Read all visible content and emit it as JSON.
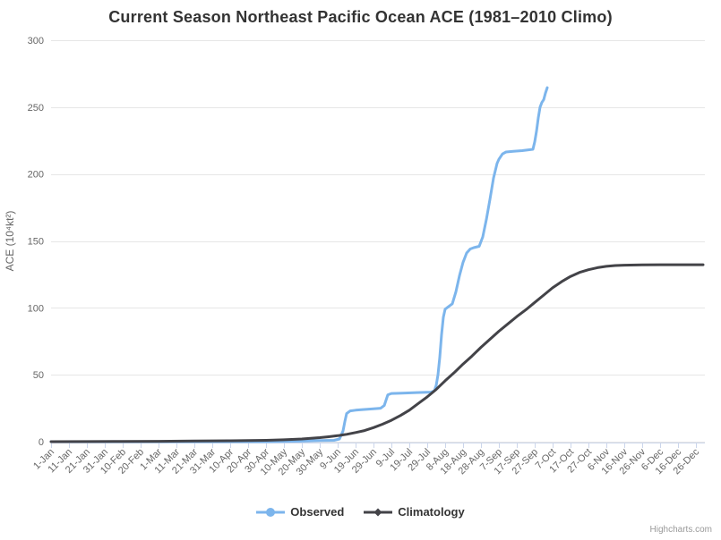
{
  "chart": {
    "credit": "Highcharts.com",
    "colors": {
      "background": "#ffffff",
      "observed": "#7cb5ec",
      "climatology": "#434348",
      "grid": "#e6e6e6",
      "axis_line": "#ccd6eb",
      "tick_label": "#666666",
      "title_text": "#333333",
      "legend_text": "#333333",
      "credit_text": "#999999"
    }
  },
  "chart_data": {
    "type": "line",
    "title": "Current Season Northeast Pacific Ocean ACE (1981–2010 Climo)",
    "xlabel": "",
    "ylabel": "ACE (10⁴kt²)",
    "ylim": [
      0,
      300
    ],
    "y_ticks": [
      0,
      50,
      100,
      150,
      200,
      250,
      300
    ],
    "grid": "horizontal",
    "legend_position": "bottom",
    "x_range_days": [
      0,
      364
    ],
    "x_tick_days": [
      0,
      10,
      20,
      30,
      40,
      50,
      60,
      70,
      80,
      90,
      100,
      110,
      120,
      130,
      140,
      150,
      160,
      170,
      180,
      190,
      200,
      210,
      220,
      230,
      240,
      250,
      260,
      270,
      280,
      290,
      300,
      310,
      320,
      330,
      340,
      350,
      360
    ],
    "x_tick_labels": [
      "1-Jan",
      "11-Jan",
      "21-Jan",
      "31-Jan",
      "10-Feb",
      "20-Feb",
      "1-Mar",
      "11-Mar",
      "21-Mar",
      "31-Mar",
      "10-Apr",
      "20-Apr",
      "30-Apr",
      "10-May",
      "20-May",
      "30-May",
      "9-Jun",
      "19-Jun",
      "29-Jun",
      "9-Jul",
      "19-Jul",
      "29-Jul",
      "8-Aug",
      "18-Aug",
      "28-Aug",
      "7-Sep",
      "17-Sep",
      "27-Sep",
      "7-Oct",
      "17-Oct",
      "27-Oct",
      "6-Nov",
      "16-Nov",
      "26-Nov",
      "6-Dec",
      "16-Dec",
      "26-Dec"
    ],
    "series": [
      {
        "name": "Observed",
        "color": "#7cb5ec",
        "marker": "circle",
        "points": [
          [
            0,
            0
          ],
          [
            20,
            0
          ],
          [
            40,
            0
          ],
          [
            60,
            0
          ],
          [
            80,
            0
          ],
          [
            100,
            0
          ],
          [
            120,
            0
          ],
          [
            140,
            0.4
          ],
          [
            150,
            0.8
          ],
          [
            158,
            1
          ],
          [
            161,
            2
          ],
          [
            163,
            8
          ],
          [
            164,
            15
          ],
          [
            165,
            21
          ],
          [
            167,
            23
          ],
          [
            170,
            23.5
          ],
          [
            174,
            24
          ],
          [
            180,
            24.5
          ],
          [
            184,
            25
          ],
          [
            186,
            27
          ],
          [
            187,
            31
          ],
          [
            188,
            35
          ],
          [
            190,
            36
          ],
          [
            196,
            36.3
          ],
          [
            204,
            36.7
          ],
          [
            212,
            37
          ],
          [
            214,
            38
          ],
          [
            215,
            42
          ],
          [
            216,
            50
          ],
          [
            217,
            63
          ],
          [
            218,
            80
          ],
          [
            219,
            93
          ],
          [
            220,
            99
          ],
          [
            222,
            101
          ],
          [
            224,
            103
          ],
          [
            226,
            112
          ],
          [
            228,
            124
          ],
          [
            230,
            134
          ],
          [
            232,
            141
          ],
          [
            234,
            144
          ],
          [
            236,
            145
          ],
          [
            239,
            146
          ],
          [
            241,
            153
          ],
          [
            243,
            166
          ],
          [
            245,
            181
          ],
          [
            247,
            197
          ],
          [
            249,
            208
          ],
          [
            250,
            211
          ],
          [
            252,
            215
          ],
          [
            254,
            216.5
          ],
          [
            258,
            217
          ],
          [
            263,
            217.5
          ],
          [
            269,
            218.5
          ],
          [
            270,
            224
          ],
          [
            271,
            232
          ],
          [
            272,
            242
          ],
          [
            273,
            250
          ],
          [
            274,
            253.5
          ],
          [
            275,
            255.5
          ],
          [
            276,
            260.5
          ],
          [
            277,
            264.5
          ]
        ]
      },
      {
        "name": "Climatology",
        "color": "#434348",
        "marker": "diamond",
        "points": [
          [
            0,
            0
          ],
          [
            20,
            0.1
          ],
          [
            40,
            0.2
          ],
          [
            60,
            0.3
          ],
          [
            80,
            0.5
          ],
          [
            100,
            0.7
          ],
          [
            120,
            1
          ],
          [
            130,
            1.4
          ],
          [
            140,
            2
          ],
          [
            150,
            3
          ],
          [
            155,
            3.7
          ],
          [
            160,
            4.5
          ],
          [
            165,
            5.5
          ],
          [
            170,
            6.8
          ],
          [
            175,
            8.3
          ],
          [
            180,
            10.5
          ],
          [
            185,
            13
          ],
          [
            190,
            16
          ],
          [
            195,
            19.5
          ],
          [
            200,
            23.5
          ],
          [
            205,
            28.5
          ],
          [
            210,
            33.5
          ],
          [
            215,
            39
          ],
          [
            220,
            45.5
          ],
          [
            225,
            51.5
          ],
          [
            230,
            58
          ],
          [
            235,
            64
          ],
          [
            240,
            70.5
          ],
          [
            245,
            76.5
          ],
          [
            250,
            82.5
          ],
          [
            255,
            88
          ],
          [
            260,
            93.5
          ],
          [
            265,
            98.5
          ],
          [
            270,
            104
          ],
          [
            275,
            109.5
          ],
          [
            280,
            115
          ],
          [
            285,
            119.5
          ],
          [
            290,
            123.5
          ],
          [
            295,
            126.5
          ],
          [
            300,
            128.5
          ],
          [
            305,
            130
          ],
          [
            310,
            131
          ],
          [
            315,
            131.6
          ],
          [
            320,
            131.9
          ],
          [
            330,
            132.1
          ],
          [
            340,
            132.2
          ],
          [
            350,
            132.2
          ],
          [
            360,
            132.2
          ],
          [
            364,
            132.2
          ]
        ]
      }
    ]
  }
}
